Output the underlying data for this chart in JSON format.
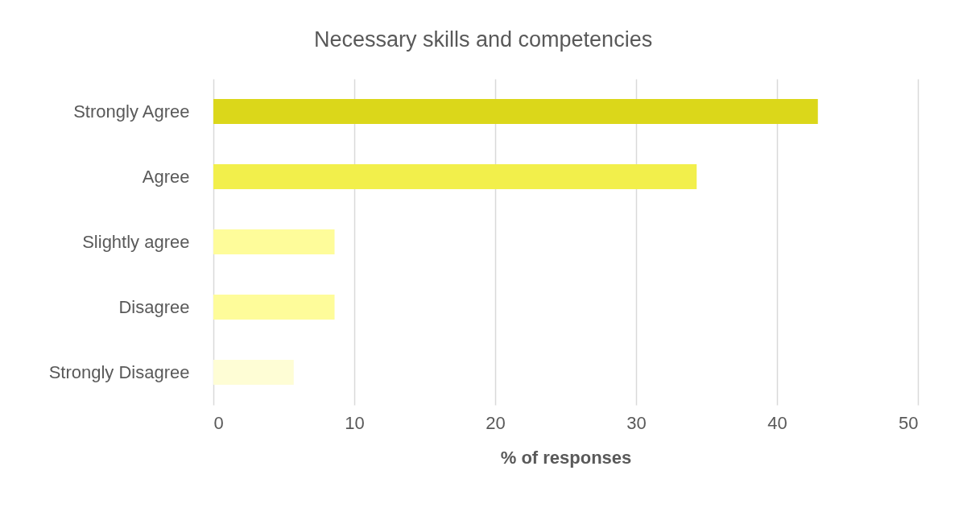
{
  "chart_data": {
    "type": "bar",
    "orientation": "horizontal",
    "title": "Necessary skills and competencies",
    "xlabel": "% of responses",
    "categories": [
      "Strongly Agree",
      "Agree",
      "Slightly agree",
      "Disagree",
      "Strongly Disagree"
    ],
    "values": [
      42.9,
      34.3,
      8.6,
      8.6,
      5.7
    ],
    "colors": [
      "#dbd71a",
      "#f2ef4b",
      "#fefc9a",
      "#fefc9a",
      "#fefdd5"
    ],
    "xlim": [
      0,
      50
    ],
    "xticks": [
      0,
      10,
      20,
      30,
      40,
      50
    ],
    "grid": "x"
  }
}
